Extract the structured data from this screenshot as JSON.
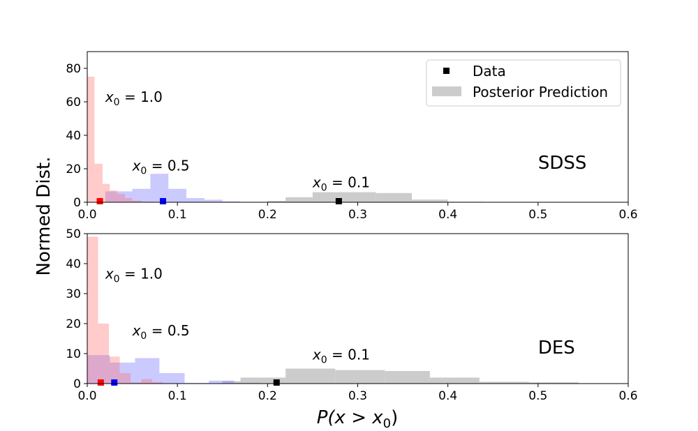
{
  "figure": {
    "ylabel": "Normed Dist.",
    "xlabel_parts": [
      "P(",
      "x",
      " > ",
      "x",
      "0",
      ")"
    ],
    "xlim": [
      0,
      0.6
    ],
    "xticks": [
      "0.0",
      "0.1",
      "0.2",
      "0.3",
      "0.4",
      "0.5",
      "0.6"
    ],
    "colors": {
      "black": "#000000",
      "gray": "#b0b0b0",
      "red": "#ff6b6b",
      "blue": "#7b7bff",
      "red_marker": "#ff0000",
      "blue_marker": "#0000ff"
    }
  },
  "legend": {
    "items": [
      {
        "label": "Data",
        "kind": "marker"
      },
      {
        "label": "Posterior Prediction",
        "kind": "patch"
      }
    ]
  },
  "chart_data": [
    {
      "type": "bar",
      "panel_label": "SDSS",
      "xlabel": "",
      "ylabel": "Normed Dist.",
      "xlim": [
        0,
        0.6
      ],
      "ylim": [
        0,
        90
      ],
      "yticks": [
        "0",
        "20",
        "40",
        "60",
        "80"
      ],
      "annotations": [
        {
          "var": "x",
          "sub": "0",
          "rest": " = 1.0",
          "x": 0.02,
          "y": 60
        },
        {
          "var": "x",
          "sub": "0",
          "rest": " = 0.5",
          "x": 0.05,
          "y": 19
        },
        {
          "var": "x",
          "sub": "0",
          "rest": " = 0.1",
          "x": 0.25,
          "y": 9
        }
      ],
      "series": [
        {
          "name": "x0 = 0.1",
          "color": "gray",
          "bins": [
            [
              0.2,
              0.22,
              0.8
            ],
            [
              0.22,
              0.25,
              3
            ],
            [
              0.25,
              0.32,
              6
            ],
            [
              0.32,
              0.36,
              5.5
            ],
            [
              0.36,
              0.4,
              1.6
            ],
            [
              0.4,
              0.44,
              0.3
            ]
          ]
        },
        {
          "name": "x0 = 0.5",
          "color": "blue",
          "bins": [
            [
              0.02,
              0.05,
              6.5
            ],
            [
              0.05,
              0.07,
              8
            ],
            [
              0.07,
              0.09,
              17
            ],
            [
              0.09,
              0.11,
              8
            ],
            [
              0.11,
              0.13,
              2.5
            ],
            [
              0.13,
              0.15,
              1.5
            ],
            [
              0.15,
              0.17,
              0.5
            ]
          ]
        },
        {
          "name": "x0 = 1.0",
          "color": "red",
          "bins": [
            [
              0,
              0.008,
              75
            ],
            [
              0.008,
              0.017,
              23
            ],
            [
              0.017,
              0.025,
              11
            ],
            [
              0.025,
              0.033,
              7
            ],
            [
              0.033,
              0.042,
              5
            ],
            [
              0.042,
              0.05,
              2.5
            ],
            [
              0.05,
              0.06,
              1
            ]
          ]
        }
      ],
      "data_points": [
        {
          "name": "x0 = 1.0",
          "x": 0.014,
          "color": "red_marker"
        },
        {
          "name": "x0 = 0.5",
          "x": 0.084,
          "color": "blue_marker"
        },
        {
          "name": "x0 = 0.1",
          "x": 0.279,
          "color": "black"
        }
      ]
    },
    {
      "type": "bar",
      "panel_label": "DES",
      "xlabel": "P(x > x0)",
      "ylabel": "Normed Dist.",
      "xlim": [
        0,
        0.6
      ],
      "ylim": [
        0,
        50
      ],
      "yticks": [
        "0",
        "10",
        "20",
        "30",
        "40",
        "50"
      ],
      "annotations": [
        {
          "var": "x",
          "sub": "0",
          "rest": " = 1.0",
          "x": 0.02,
          "y": 35
        },
        {
          "var": "x",
          "sub": "0",
          "rest": " = 0.5",
          "x": 0.05,
          "y": 16
        },
        {
          "var": "x",
          "sub": "0",
          "rest": " = 0.1",
          "x": 0.25,
          "y": 8
        }
      ],
      "series": [
        {
          "name": "x0 = 0.1",
          "color": "gray",
          "bins": [
            [
              0.15,
              0.17,
              0.8
            ],
            [
              0.17,
              0.22,
              2
            ],
            [
              0.22,
              0.275,
              5
            ],
            [
              0.275,
              0.33,
              4.5
            ],
            [
              0.33,
              0.38,
              4.2
            ],
            [
              0.38,
              0.435,
              2
            ],
            [
              0.435,
              0.49,
              0.6
            ],
            [
              0.49,
              0.545,
              0.4
            ]
          ]
        },
        {
          "name": "x0 = 0.5",
          "color": "blue",
          "bins": [
            [
              0,
              0.025,
              9.5
            ],
            [
              0.025,
              0.053,
              7
            ],
            [
              0.053,
              0.08,
              8.5
            ],
            [
              0.08,
              0.108,
              3.5
            ],
            [
              0.108,
              0.135,
              0.2
            ],
            [
              0.135,
              0.163,
              1
            ],
            [
              0.163,
              0.19,
              0.2
            ]
          ]
        },
        {
          "name": "x0 = 1.0",
          "color": "red",
          "bins": [
            [
              0,
              0.012,
              49
            ],
            [
              0.012,
              0.024,
              20
            ],
            [
              0.024,
              0.036,
              9
            ],
            [
              0.036,
              0.048,
              3.5
            ],
            [
              0.048,
              0.06,
              0.4
            ],
            [
              0.06,
              0.072,
              1.5
            ],
            [
              0.072,
              0.084,
              0.5
            ]
          ]
        }
      ],
      "data_points": [
        {
          "name": "x0 = 1.0",
          "x": 0.015,
          "color": "red_marker"
        },
        {
          "name": "x0 = 0.5",
          "x": 0.03,
          "color": "blue_marker"
        },
        {
          "name": "x0 = 0.1",
          "x": 0.21,
          "color": "black"
        }
      ]
    }
  ]
}
